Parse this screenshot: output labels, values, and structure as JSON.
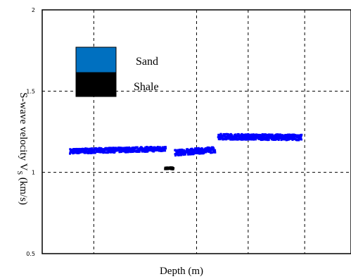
{
  "chart_data": {
    "type": "scatter",
    "title": "",
    "xlabel": "Depth (m)",
    "ylabel_main": "S-wave velocity V",
    "ylabel_sub": "S",
    "ylabel_unit": " (km/s)",
    "ylim": [
      0.5,
      2
    ],
    "yticks": [
      "0.5",
      "1",
      "1.5",
      "2"
    ],
    "ytick_values": [
      0.5,
      1,
      1.5,
      2
    ],
    "xlim": [
      0,
      1
    ],
    "x_grid": [
      0.167,
      0.5,
      0.667,
      0.85
    ],
    "x_ticks_shown": false,
    "grid": true,
    "legend_placement": "top-left",
    "legend": [
      {
        "label": "Sand",
        "color": "#0070c0"
      },
      {
        "label": "Shale",
        "color": "#000000"
      }
    ],
    "series": [
      {
        "name": "Sand",
        "color": "#0000ff",
        "segments": [
          {
            "x_start": 0.09,
            "x_end": 0.4,
            "y_start": 1.13,
            "y_end": 1.145,
            "spread": 0.03
          },
          {
            "x_start": 0.43,
            "x_end": 0.56,
            "y_start": 1.12,
            "y_end": 1.14,
            "spread": 0.035
          },
          {
            "x_start": 0.57,
            "x_end": 0.84,
            "y_start": 1.22,
            "y_end": 1.215,
            "spread": 0.035
          }
        ]
      },
      {
        "name": "Shale",
        "color": "#000000",
        "segments": [
          {
            "x_start": 0.398,
            "x_end": 0.425,
            "y_start": 1.025,
            "y_end": 1.025,
            "spread": 0.012
          }
        ]
      }
    ]
  }
}
